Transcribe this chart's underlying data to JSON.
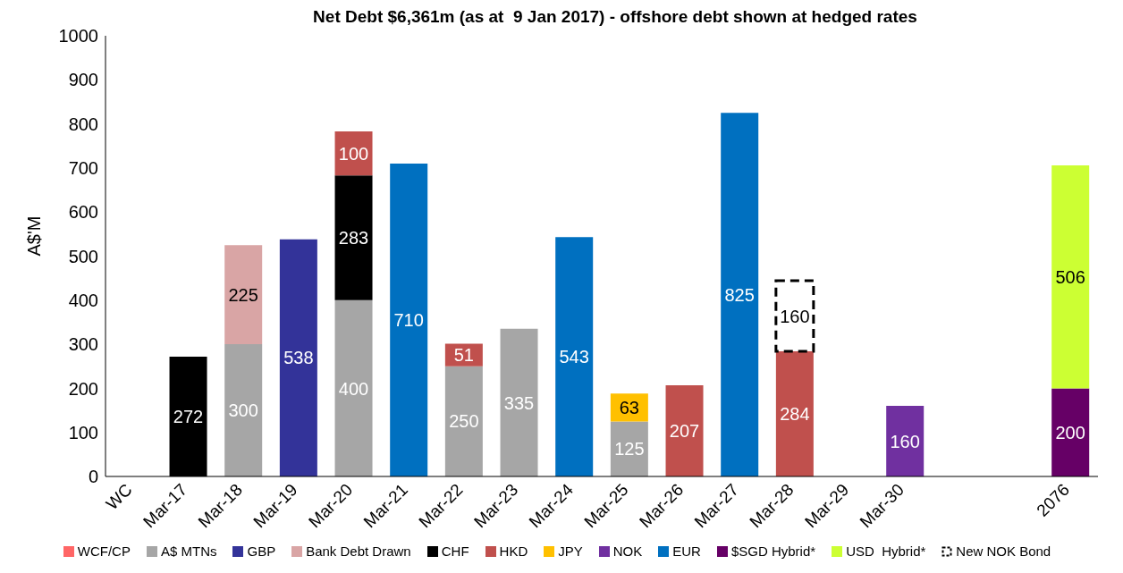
{
  "chart_data": {
    "type": "bar",
    "title": "Net Debt $6,361m (as at  9 Jan 2017) - offshore debt shown at hedged rates",
    "ylabel": "A$'M",
    "categories": [
      "WC",
      "Mar-17",
      "Mar-18",
      "Mar-19",
      "Mar-20",
      "Mar-21",
      "Mar-22",
      "Mar-23",
      "Mar-24",
      "Mar-25",
      "Mar-26",
      "Mar-27",
      "Mar-28",
      "Mar-29",
      "Mar-30",
      null,
      null,
      "2076"
    ],
    "stacked": true,
    "data_labels": true,
    "grid": false,
    "legend": "bottom",
    "ylim": [
      0,
      1000
    ],
    "yticks": [
      0,
      100,
      200,
      300,
      400,
      500,
      600,
      700,
      800,
      900,
      1000
    ],
    "series": [
      {
        "name": "WCF/CP",
        "color": "#ff6666",
        "values": [
          null,
          null,
          null,
          null,
          null,
          null,
          null,
          null,
          null,
          null,
          null,
          null,
          null,
          null,
          null,
          null,
          null,
          null
        ]
      },
      {
        "name": "A$ MTNs",
        "color": "#a6a6a6",
        "values": [
          null,
          null,
          300,
          null,
          400,
          null,
          250,
          335,
          null,
          125,
          null,
          null,
          null,
          null,
          null,
          null,
          null,
          null
        ]
      },
      {
        "name": "GBP",
        "color": "#333399",
        "values": [
          null,
          null,
          null,
          538,
          null,
          null,
          null,
          null,
          null,
          null,
          null,
          null,
          null,
          null,
          null,
          null,
          null,
          null
        ]
      },
      {
        "name": "Bank Debt Drawn",
        "color": "#d9a5a5",
        "values": [
          null,
          null,
          225,
          null,
          null,
          null,
          null,
          null,
          null,
          null,
          null,
          null,
          null,
          null,
          null,
          null,
          null,
          null
        ]
      },
      {
        "name": "CHF",
        "color": "#000000",
        "values": [
          null,
          272,
          null,
          null,
          283,
          null,
          null,
          null,
          null,
          null,
          null,
          null,
          null,
          null,
          null,
          null,
          null,
          null
        ]
      },
      {
        "name": "HKD",
        "color": "#c0504d",
        "values": [
          null,
          null,
          null,
          null,
          100,
          null,
          51,
          null,
          null,
          null,
          207,
          null,
          284,
          null,
          null,
          null,
          null,
          null
        ]
      },
      {
        "name": "JPY",
        "color": "#ffc000",
        "values": [
          null,
          null,
          null,
          null,
          null,
          null,
          null,
          null,
          null,
          63,
          null,
          null,
          null,
          null,
          null,
          null,
          null,
          null
        ]
      },
      {
        "name": "NOK",
        "color": "#7030a0",
        "values": [
          null,
          null,
          null,
          null,
          null,
          null,
          null,
          null,
          null,
          null,
          null,
          null,
          null,
          null,
          160,
          null,
          null,
          null
        ]
      },
      {
        "name": "EUR",
        "color": "#0070c0",
        "values": [
          null,
          null,
          null,
          null,
          null,
          710,
          null,
          null,
          543,
          null,
          null,
          825,
          null,
          null,
          null,
          null,
          null,
          null
        ]
      },
      {
        "name": "$SGD Hybrid*",
        "color": "#660066",
        "values": [
          null,
          null,
          null,
          null,
          null,
          null,
          null,
          null,
          null,
          null,
          null,
          null,
          null,
          null,
          null,
          null,
          null,
          200
        ]
      },
      {
        "name": "USD  Hybrid*",
        "color": "#ccff33",
        "values": [
          null,
          null,
          null,
          null,
          null,
          null,
          null,
          null,
          null,
          null,
          null,
          null,
          null,
          null,
          null,
          null,
          null,
          506
        ]
      },
      {
        "name": "New NOK Bond",
        "color": "#000000",
        "line_style": "dashed",
        "values": [
          null,
          null,
          null,
          null,
          null,
          null,
          null,
          null,
          null,
          null,
          null,
          null,
          160,
          null,
          null,
          null,
          null,
          null
        ]
      }
    ]
  }
}
